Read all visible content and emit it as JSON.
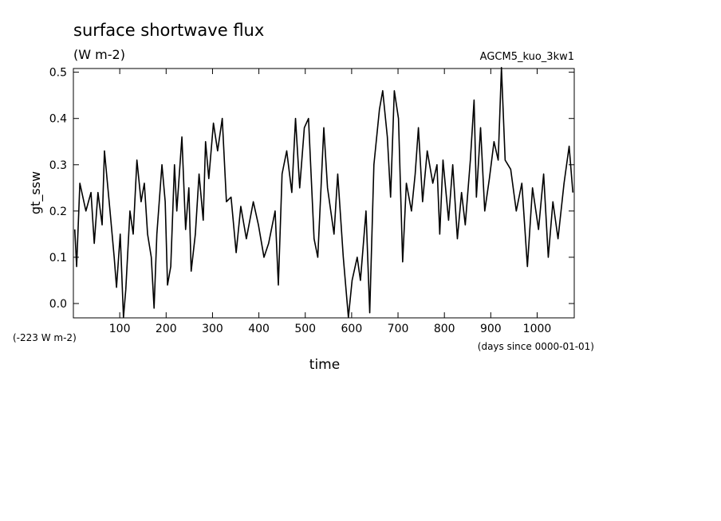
{
  "chart_data": {
    "type": "line",
    "title": "surface shortwave flux",
    "subtitle": "(W m-2)",
    "run_label": "AGCM5_kuo_3kw1",
    "y_label": "gt_ssw",
    "x_label": "time",
    "y_offset_note": "(-223 W m-2)",
    "x_units": "(days since 0000-01-01)",
    "xlim": [
      0,
      1080
    ],
    "ylim": [
      -0.031,
      0.508
    ],
    "xticks": [
      100,
      200,
      300,
      400,
      500,
      600,
      700,
      800,
      900,
      1000
    ],
    "yticks": [
      {
        "value": 0,
        "label": "0.0"
      },
      0.1,
      0.2,
      0.3,
      0.4,
      0.5
    ],
    "grid": false,
    "series": [
      {
        "color": "#000000",
        "x": [
          3,
          7,
          14,
          27,
          38,
          45,
          53,
          62,
          67,
          79,
          88,
          93,
          101,
          108,
          113,
          122,
          129,
          137,
          146,
          153,
          160,
          168,
          174,
          180,
          191,
          198,
          203,
          210,
          218,
          223,
          234,
          242,
          249,
          254,
          263,
          271,
          280,
          285,
          292,
          302,
          311,
          321,
          330,
          340,
          351,
          361,
          373,
          388,
          399,
          411,
          421,
          435,
          442,
          450,
          460,
          471,
          479,
          488,
          498,
          507,
          519,
          527,
          540,
          548,
          562,
          570,
          582,
          593,
          601,
          612,
          619,
          631,
          639,
          648,
          660,
          667,
          677,
          684,
          692,
          701,
          710,
          718,
          729,
          737,
          744,
          753,
          763,
          775,
          784,
          790,
          797,
          809,
          818,
          828,
          837,
          845,
          856,
          864,
          869,
          878,
          887,
          897,
          907,
          916,
          923,
          931,
          943,
          955,
          967,
          979,
          990,
          1003,
          1014,
          1024,
          1034,
          1045,
          1058,
          1069,
          1077
        ],
        "values": [
          0.16,
          0.08,
          0.26,
          0.2,
          0.24,
          0.13,
          0.24,
          0.17,
          0.33,
          0.2,
          0.1,
          0.035,
          0.15,
          -0.03,
          0.03,
          0.2,
          0.15,
          0.31,
          0.22,
          0.26,
          0.15,
          0.1,
          -0.01,
          0.15,
          0.3,
          0.22,
          0.04,
          0.08,
          0.3,
          0.2,
          0.36,
          0.16,
          0.25,
          0.07,
          0.15,
          0.28,
          0.18,
          0.35,
          0.27,
          0.39,
          0.33,
          0.4,
          0.22,
          0.23,
          0.11,
          0.21,
          0.14,
          0.22,
          0.17,
          0.1,
          0.13,
          0.2,
          0.04,
          0.28,
          0.33,
          0.24,
          0.4,
          0.25,
          0.38,
          0.4,
          0.14,
          0.1,
          0.38,
          0.25,
          0.15,
          0.28,
          0.1,
          -0.03,
          0.05,
          0.1,
          0.05,
          0.2,
          -0.02,
          0.3,
          0.42,
          0.46,
          0.36,
          0.23,
          0.46,
          0.4,
          0.09,
          0.26,
          0.2,
          0.28,
          0.38,
          0.22,
          0.33,
          0.26,
          0.3,
          0.15,
          0.31,
          0.18,
          0.3,
          0.14,
          0.24,
          0.17,
          0.31,
          0.44,
          0.23,
          0.38,
          0.2,
          0.27,
          0.35,
          0.31,
          0.51,
          0.31,
          0.29,
          0.2,
          0.26,
          0.08,
          0.25,
          0.16,
          0.28,
          0.1,
          0.22,
          0.14,
          0.26,
          0.34,
          0.24
        ]
      }
    ]
  }
}
